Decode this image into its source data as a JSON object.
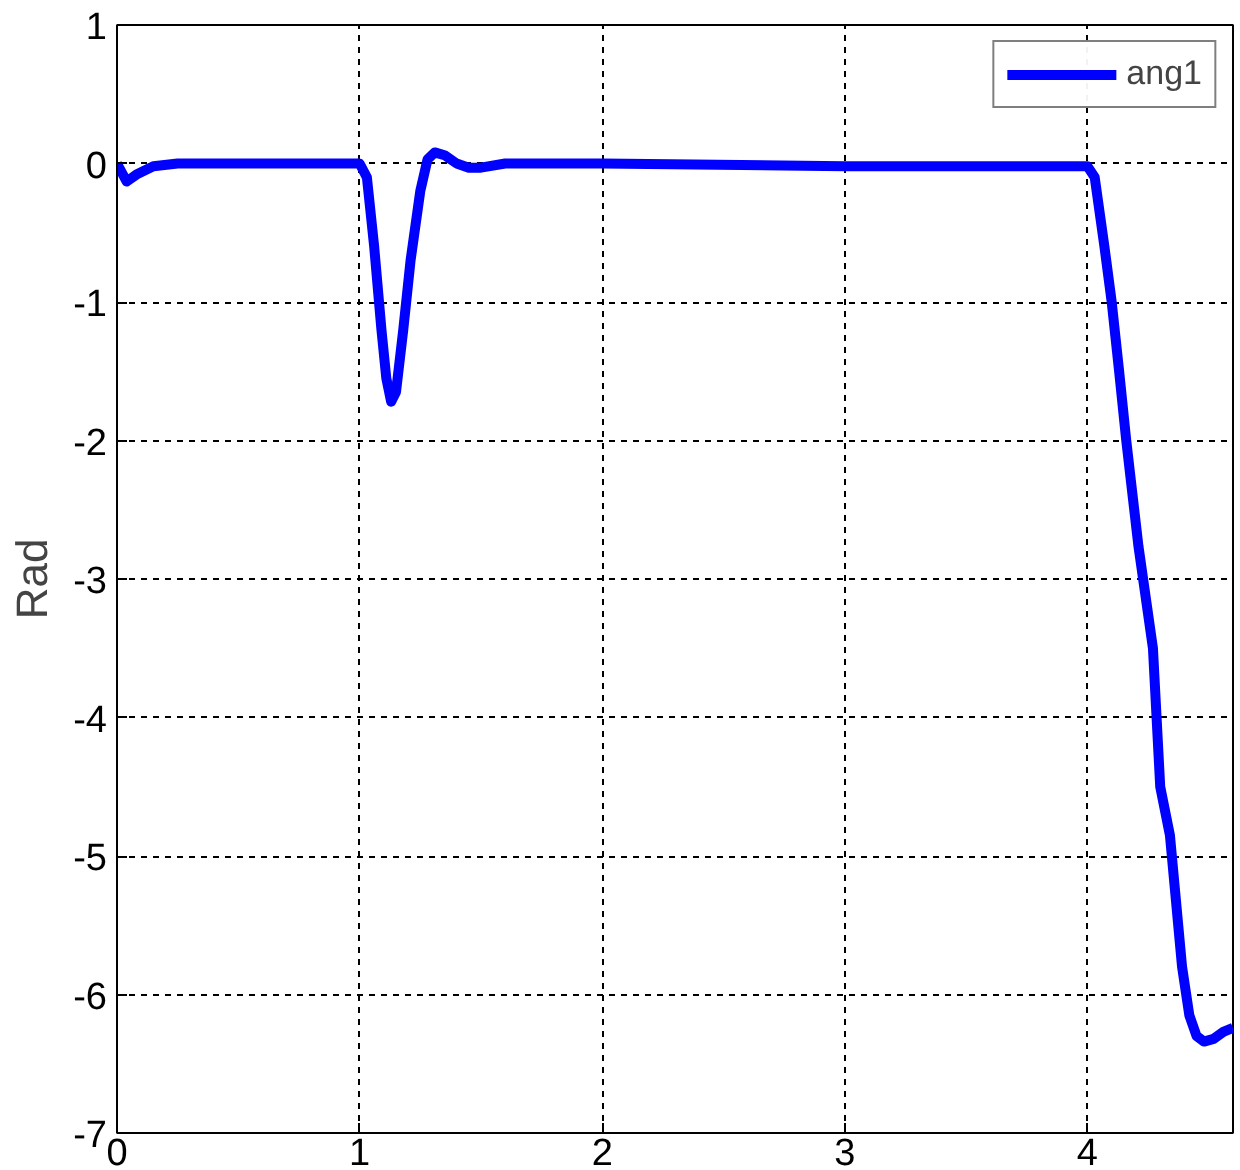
{
  "chart_data": {
    "type": "line",
    "ylabel": "Rad",
    "x": [
      0,
      0.04,
      0.08,
      0.15,
      0.25,
      0.5,
      1.0,
      1.03,
      1.06,
      1.09,
      1.11,
      1.13,
      1.15,
      1.18,
      1.21,
      1.25,
      1.28,
      1.31,
      1.35,
      1.4,
      1.45,
      1.5,
      1.6,
      2.0,
      3.0,
      4.0,
      4.03,
      4.07,
      4.1,
      4.13,
      4.16,
      4.21,
      4.27,
      4.3,
      4.34,
      4.39,
      4.42,
      4.45,
      4.48,
      4.52,
      4.56,
      4.6
    ],
    "series": [
      {
        "name": "ang1",
        "color": "#0000ff",
        "values": [
          0,
          -0.13,
          -0.08,
          -0.02,
          0,
          0,
          0,
          -0.1,
          -0.6,
          -1.2,
          -1.55,
          -1.72,
          -1.65,
          -1.2,
          -0.7,
          -0.2,
          0.03,
          0.08,
          0.06,
          0.0,
          -0.03,
          -0.03,
          0,
          0,
          -0.02,
          -0.02,
          -0.1,
          -0.6,
          -1.0,
          -1.49,
          -2.0,
          -2.76,
          -3.5,
          -4.5,
          -4.85,
          -5.8,
          -6.15,
          -6.3,
          -6.34,
          -6.32,
          -6.27,
          -6.24
        ]
      }
    ],
    "xlim": [
      0,
      4.6
    ],
    "ylim": [
      -7,
      1
    ],
    "xticks": [
      0,
      1,
      2,
      3,
      4
    ],
    "yticks": [
      -7,
      -6,
      -5,
      -4,
      -3,
      -2,
      -1,
      0,
      1
    ],
    "grid": true,
    "legend": "top right",
    "line_style": "solid",
    "marker": "none"
  }
}
